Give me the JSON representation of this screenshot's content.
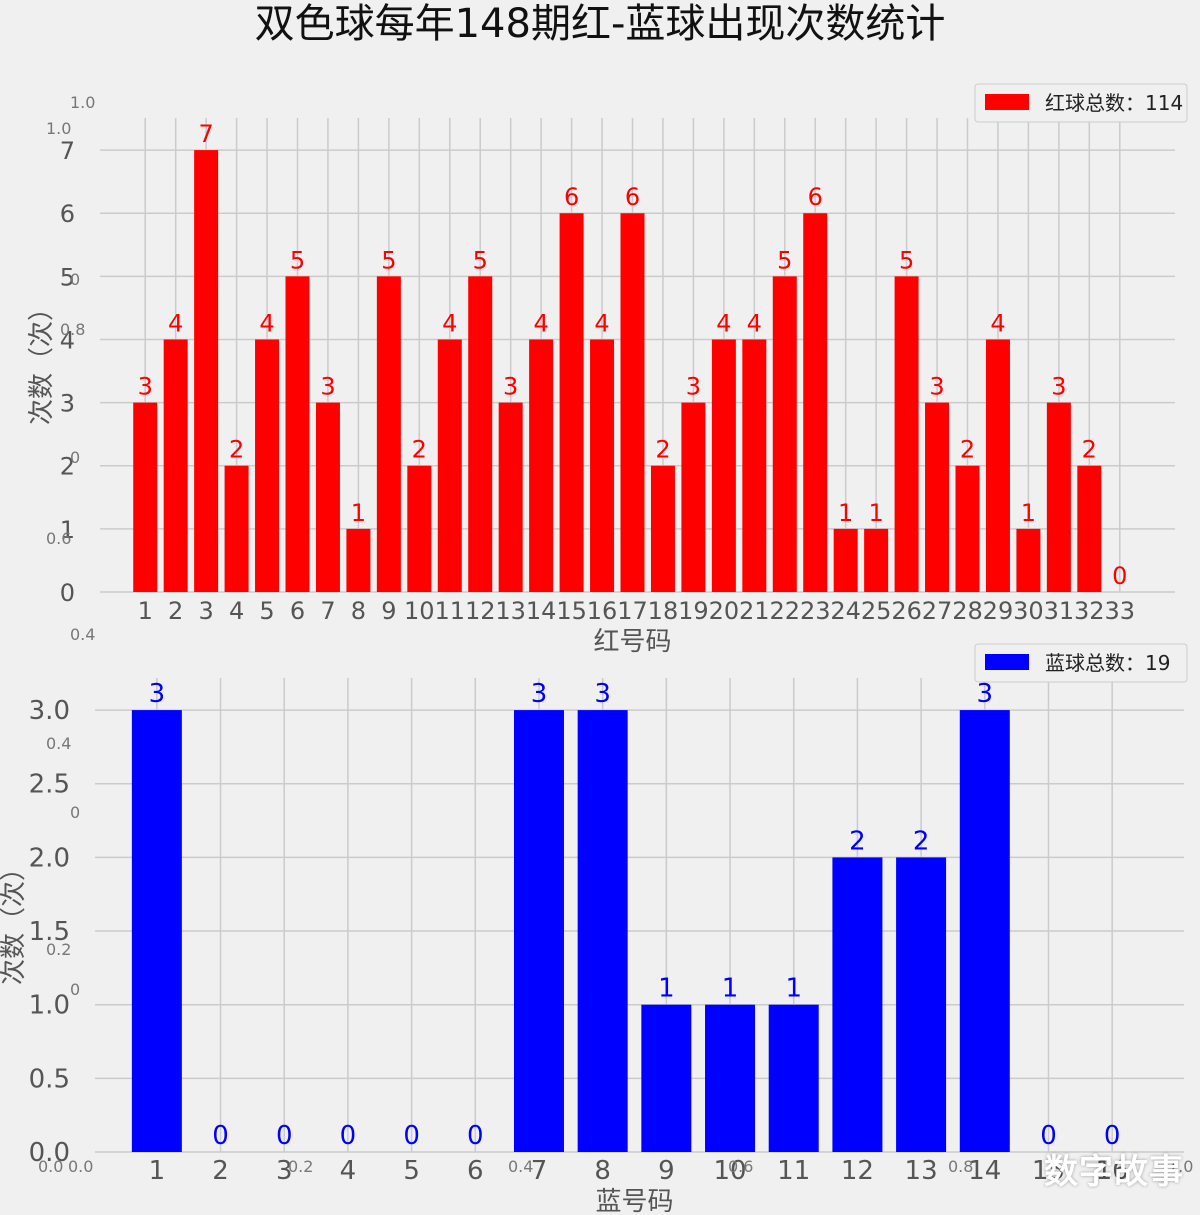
{
  "figure": {
    "title": "双色球每年148期红-蓝球出现次数统计",
    "watermark": "数字故事"
  },
  "colors": {
    "background": "#f0f0f0",
    "grid": "#cbcbcb",
    "red": "#ff0000",
    "blue": "#0000ff",
    "text": "#555555"
  },
  "chart_data": [
    {
      "type": "bar",
      "xlabel": "红号码",
      "ylabel": "次数（次）",
      "legend": {
        "label": "红球总数：114",
        "placement": "top-right"
      },
      "color": "#ff0000",
      "grid": true,
      "ylim": [
        0,
        7.35
      ],
      "yticks": [
        0,
        1,
        2,
        3,
        4,
        5,
        6,
        7
      ],
      "ytick_labels": [
        "0",
        "1",
        "2",
        "3",
        "4",
        "5",
        "6",
        "7"
      ],
      "categories": [
        "1",
        "2",
        "3",
        "4",
        "5",
        "6",
        "7",
        "8",
        "9",
        "10",
        "11",
        "12",
        "13",
        "14",
        "15",
        "16",
        "17",
        "18",
        "19",
        "20",
        "21",
        "22",
        "23",
        "24",
        "25",
        "26",
        "27",
        "28",
        "29",
        "30",
        "31",
        "32",
        "33"
      ],
      "values": [
        3,
        4,
        7,
        2,
        4,
        5,
        3,
        1,
        5,
        2,
        4,
        5,
        3,
        4,
        6,
        4,
        6,
        2,
        3,
        4,
        4,
        5,
        6,
        1,
        1,
        5,
        3,
        2,
        4,
        1,
        3,
        2,
        0
      ]
    },
    {
      "type": "bar",
      "xlabel": "蓝号码",
      "ylabel": "次数（次）",
      "legend": {
        "label": "蓝球总数：19",
        "placement": "top-right"
      },
      "color": "#0000ff",
      "grid": true,
      "ylim": [
        0,
        3.15
      ],
      "yticks": [
        0,
        0.5,
        1,
        1.5,
        2,
        2.5,
        3
      ],
      "ytick_labels": [
        "0.0",
        "0.5",
        "1.0",
        "1.5",
        "2.0",
        "2.5",
        "3.0"
      ],
      "categories": [
        "1",
        "2",
        "3",
        "4",
        "5",
        "6",
        "7",
        "8",
        "9",
        "10",
        "11",
        "12",
        "13",
        "14",
        "15",
        "16"
      ],
      "values": [
        3,
        0,
        0,
        0,
        0,
        0,
        3,
        3,
        1,
        1,
        1,
        2,
        2,
        3,
        0,
        0
      ]
    }
  ],
  "ghost_axis": {
    "note_labels": [
      "1.0",
      "1.0",
      "0",
      "0.8",
      "0",
      "0.6",
      "0.4",
      "0.4",
      "0",
      "0.2",
      "0",
      "0.0",
      "0.0",
      "0.2",
      "0.4",
      "0.6",
      "0.8",
      "1.0"
    ]
  }
}
